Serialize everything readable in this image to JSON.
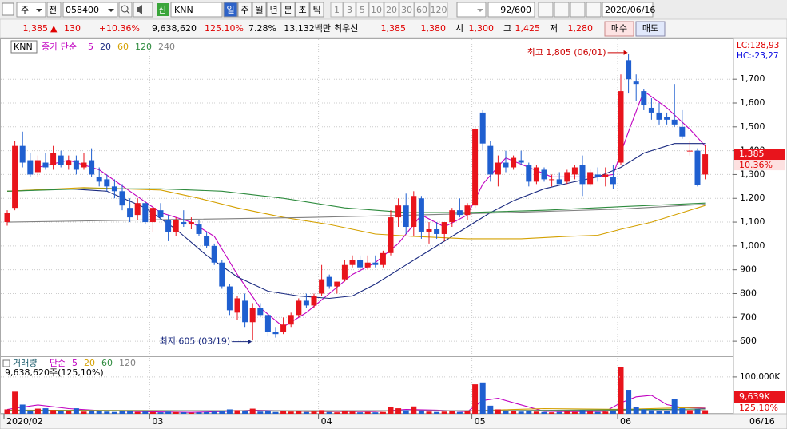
{
  "toolbar": {
    "market": "주",
    "prev": "전",
    "code": "058400",
    "badge": "신",
    "name": "KNN",
    "periods": [
      "일",
      "주",
      "월",
      "년",
      "분",
      "초",
      "틱"
    ],
    "intervals": [
      "1",
      "3",
      "5",
      "10",
      "20",
      "30",
      "60",
      "120"
    ],
    "count": "92/600",
    "date": "2020/06/16"
  },
  "quote": {
    "price": "1,385",
    "arrow": "▲",
    "change": "130",
    "change_pct": "+10.36%",
    "volume": "9,638,620",
    "volume_ratio": "125.10%",
    "turnover": "7.28%",
    "amount": "13,132백만",
    "best_label": "최우선",
    "ask": "1,385",
    "bid": "1,380",
    "open_label": "시",
    "open": "1,300",
    "high_label": "고",
    "high": "1,425",
    "low_label": "저",
    "low": "1,280",
    "buy": "매수",
    "sell": "매도"
  },
  "chart_data": {
    "type": "candlestick",
    "symbol": "KNN",
    "ma_label": "종가 단순",
    "up_color": "#e8141c",
    "down_color": "#1f5fd0",
    "grid": true,
    "candles": [
      [
        1100,
        1150,
        1085,
        1140
      ],
      [
        1160,
        1440,
        1150,
        1420
      ],
      [
        1420,
        1480,
        1330,
        1350
      ],
      [
        1360,
        1390,
        1290,
        1300
      ],
      [
        1310,
        1380,
        1290,
        1360
      ],
      [
        1350,
        1390,
        1320,
        1330
      ],
      [
        1340,
        1420,
        1320,
        1390
      ],
      [
        1380,
        1400,
        1330,
        1340
      ],
      [
        1340,
        1380,
        1320,
        1360
      ],
      [
        1360,
        1380,
        1300,
        1320
      ],
      [
        1330,
        1390,
        1320,
        1350
      ],
      [
        1360,
        1410,
        1290,
        1300
      ],
      [
        1290,
        1330,
        1250,
        1270
      ],
      [
        1280,
        1300,
        1230,
        1250
      ],
      [
        1250,
        1280,
        1200,
        1230
      ],
      [
        1230,
        1260,
        1150,
        1170
      ],
      [
        1160,
        1200,
        1100,
        1120
      ],
      [
        1130,
        1200,
        1110,
        1180
      ],
      [
        1180,
        1190,
        1090,
        1100
      ],
      [
        1100,
        1170,
        1060,
        1160
      ],
      [
        1150,
        1180,
        1110,
        1120
      ],
      [
        1110,
        1130,
        1020,
        1060
      ],
      [
        1060,
        1120,
        1040,
        1110
      ],
      [
        1100,
        1150,
        1080,
        1090
      ],
      [
        1090,
        1120,
        1070,
        1100
      ],
      [
        1090,
        1110,
        1040,
        1050
      ],
      [
        1040,
        1060,
        990,
        1000
      ],
      [
        1000,
        1010,
        920,
        930
      ],
      [
        930,
        940,
        820,
        830
      ],
      [
        830,
        840,
        710,
        730
      ],
      [
        720,
        790,
        690,
        780
      ],
      [
        770,
        800,
        660,
        680
      ],
      [
        680,
        760,
        605,
        740
      ],
      [
        740,
        760,
        700,
        710
      ],
      [
        710,
        720,
        620,
        640
      ],
      [
        640,
        660,
        615,
        630
      ],
      [
        640,
        700,
        630,
        670
      ],
      [
        670,
        720,
        660,
        710
      ],
      [
        710,
        780,
        700,
        770
      ],
      [
        770,
        800,
        740,
        750
      ],
      [
        750,
        800,
        740,
        790
      ],
      [
        800,
        920,
        790,
        860
      ],
      [
        870,
        880,
        820,
        830
      ],
      [
        830,
        850,
        800,
        850
      ],
      [
        860,
        940,
        850,
        920
      ],
      [
        920,
        960,
        910,
        940
      ],
      [
        940,
        960,
        890,
        910
      ],
      [
        910,
        960,
        900,
        930
      ],
      [
        930,
        960,
        910,
        920
      ],
      [
        920,
        980,
        910,
        970
      ],
      [
        970,
        1150,
        960,
        1120
      ],
      [
        1120,
        1200,
        1080,
        1170
      ],
      [
        1170,
        1220,
        1050,
        1080
      ],
      [
        1080,
        1230,
        1040,
        1210
      ],
      [
        1200,
        1210,
        1030,
        1060
      ],
      [
        1060,
        1100,
        1010,
        1070
      ],
      [
        1070,
        1100,
        1030,
        1050
      ],
      [
        1050,
        1100,
        1020,
        1100
      ],
      [
        1100,
        1160,
        1080,
        1150
      ],
      [
        1150,
        1200,
        1120,
        1130
      ],
      [
        1130,
        1180,
        1110,
        1170
      ],
      [
        1170,
        1500,
        1160,
        1490
      ],
      [
        1560,
        1570,
        1400,
        1430
      ],
      [
        1420,
        1440,
        1270,
        1300
      ],
      [
        1300,
        1380,
        1250,
        1350
      ],
      [
        1350,
        1400,
        1310,
        1330
      ],
      [
        1330,
        1380,
        1320,
        1370
      ],
      [
        1360,
        1400,
        1340,
        1350
      ],
      [
        1340,
        1350,
        1250,
        1270
      ],
      [
        1270,
        1340,
        1260,
        1330
      ],
      [
        1320,
        1330,
        1270,
        1280
      ],
      [
        1280,
        1300,
        1250,
        1280
      ],
      [
        1280,
        1310,
        1260,
        1260
      ],
      [
        1270,
        1320,
        1260,
        1310
      ],
      [
        1300,
        1340,
        1280,
        1330
      ],
      [
        1340,
        1380,
        1210,
        1260
      ],
      [
        1260,
        1320,
        1250,
        1310
      ],
      [
        1300,
        1330,
        1270,
        1290
      ],
      [
        1290,
        1330,
        1250,
        1300
      ],
      [
        1290,
        1340,
        1240,
        1260
      ],
      [
        1350,
        1720,
        1340,
        1650
      ],
      [
        1780,
        1805,
        1640,
        1700
      ],
      [
        1690,
        1720,
        1610,
        1680
      ],
      [
        1650,
        1660,
        1570,
        1590
      ],
      [
        1580,
        1620,
        1530,
        1560
      ],
      [
        1560,
        1600,
        1510,
        1530
      ],
      [
        1540,
        1560,
        1510,
        1530
      ],
      [
        1530,
        1680,
        1500,
        1510
      ],
      [
        1500,
        1570,
        1450,
        1460
      ],
      [
        1400,
        1440,
        1380,
        1400
      ],
      [
        1400,
        1410,
        1250,
        1255
      ],
      [
        1300,
        1425,
        1280,
        1385
      ]
    ],
    "series": [
      {
        "name": "5",
        "color": "#c000c0",
        "x": [
          4,
          8,
          12,
          16,
          20,
          24,
          27,
          30,
          33,
          36,
          39,
          42,
          45,
          48,
          51,
          54,
          57,
          60,
          62,
          65,
          68,
          71,
          74,
          77,
          79,
          81,
          83,
          86,
          89,
          91
        ],
        "values": [
          1330,
          1360,
          1320,
          1230,
          1140,
          1100,
          1040,
          880,
          740,
          660,
          720,
          800,
          880,
          930,
          1010,
          1130,
          1080,
          1130,
          1260,
          1370,
          1330,
          1290,
          1290,
          1290,
          1300,
          1480,
          1650,
          1580,
          1490,
          1420
        ]
      },
      {
        "name": "20",
        "color": "#1a2a80",
        "x": [
          0,
          8,
          13,
          18,
          22,
          26,
          30,
          34,
          38,
          42,
          45,
          48,
          52,
          56,
          60,
          63,
          66,
          70,
          74,
          77,
          80,
          83,
          87,
          91
        ],
        "values": [
          1230,
          1240,
          1230,
          1160,
          1070,
          960,
          870,
          810,
          790,
          780,
          790,
          840,
          920,
          1000,
          1080,
          1140,
          1190,
          1240,
          1270,
          1290,
          1330,
          1390,
          1430,
          1430
        ]
      },
      {
        "name": "60",
        "color": "#d4a000",
        "x": [
          0,
          10,
          20,
          25,
          30,
          36,
          42,
          48,
          53,
          60,
          67,
          73,
          77,
          80,
          84,
          88,
          91
        ],
        "values": [
          1230,
          1245,
          1235,
          1200,
          1160,
          1120,
          1090,
          1050,
          1040,
          1030,
          1030,
          1040,
          1045,
          1070,
          1100,
          1140,
          1170
        ]
      },
      {
        "name": "120",
        "color": "#2e8b3e",
        "x": [
          0,
          10,
          20,
          28,
          36,
          44,
          52,
          60,
          70,
          80,
          91
        ],
        "values": [
          1230,
          1240,
          1240,
          1230,
          1200,
          1160,
          1140,
          1140,
          1150,
          1165,
          1180
        ]
      },
      {
        "name": "240",
        "color": "#808080",
        "x": [
          0,
          20,
          40,
          60,
          80,
          91
        ],
        "values": [
          1100,
          1110,
          1120,
          1135,
          1155,
          1175
        ]
      }
    ],
    "ylim": [
      540,
      1865
    ],
    "yticks": [
      600,
      700,
      800,
      900,
      {
        "value": 1000,
        "label": "1,000"
      },
      {
        "value": 1100,
        "label": "1,100"
      },
      {
        "value": 1200,
        "label": "1,200"
      },
      {
        "value": 1300,
        "label": "1,300"
      },
      {
        "value": 1400,
        "label": "1,400"
      },
      {
        "value": 1500,
        "label": "1,500"
      },
      {
        "value": 1600,
        "label": "1,600"
      },
      {
        "value": 1700,
        "label": "1,700"
      }
    ],
    "month_starts": [
      {
        "value": 0,
        "label": "2020/02"
      },
      {
        "value": 19,
        "label": "03"
      },
      {
        "value": 41,
        "label": "04"
      },
      {
        "value": 61,
        "label": "05"
      },
      {
        "value": 80,
        "label": "06"
      }
    ],
    "last_date": "06/16",
    "annotations": [
      {
        "text": "최고 1,805 (06/01)",
        "index": 81,
        "value": 1805
      },
      {
        "text": "최저 605 (03/19)",
        "index": 32,
        "value": 605
      }
    ],
    "lc": "LC:128,93",
    "hc": "HC:-23,27",
    "current": {
      "value": 1385,
      "label": "1,385"
    },
    "current_pct": "10.36%",
    "volume": {
      "title": "거래량",
      "ma_label": "단순",
      "summary": "9,638,620주(125,10%)",
      "values": [
        12000,
        60000,
        25000,
        9000,
        14000,
        15000,
        10000,
        7000,
        8000,
        15000,
        6000,
        9000,
        7000,
        6000,
        5000,
        8000,
        7000,
        5000,
        6000,
        5000,
        4000,
        6000,
        5000,
        4000,
        3000,
        4000,
        5000,
        6000,
        8000,
        12000,
        10000,
        8000,
        14000,
        6000,
        9000,
        5000,
        7000,
        6000,
        8000,
        5000,
        6000,
        10000,
        5000,
        4000,
        7000,
        6000,
        4000,
        5000,
        4000,
        5000,
        18000,
        15000,
        10000,
        20000,
        9000,
        6000,
        5000,
        6000,
        7000,
        5000,
        8000,
        80000,
        85000,
        22000,
        12000,
        8000,
        7000,
        6000,
        8000,
        6000,
        5000,
        4000,
        5000,
        6000,
        5000,
        10000,
        6000,
        5000,
        6000,
        7000,
        126000,
        65000,
        18000,
        12000,
        10000,
        9000,
        7000,
        40000,
        15000,
        10000,
        12000,
        9639
      ],
      "series": [
        {
          "name": "5",
          "color": "#c000c0",
          "x": [
            0,
            4,
            8,
            12,
            16,
            20,
            24,
            28,
            32,
            36,
            40,
            44,
            48,
            52,
            56,
            60,
            62,
            64,
            66,
            70,
            74,
            78,
            80,
            82,
            84,
            86,
            88,
            91
          ],
          "values": [
            12000,
            24000,
            14000,
            9000,
            7000,
            5000,
            4000,
            6000,
            10000,
            8000,
            6000,
            6000,
            6000,
            12000,
            10000,
            6000,
            36000,
            42000,
            30000,
            7000,
            6000,
            7000,
            30000,
            46000,
            50000,
            25000,
            17000,
            15000
          ]
        },
        {
          "name": "20",
          "color": "#d4a000",
          "x": [
            0,
            20,
            40,
            60,
            70,
            80,
            91
          ],
          "values": [
            10000,
            9000,
            7000,
            8000,
            14000,
            12000,
            18000
          ]
        },
        {
          "name": "60",
          "color": "#2e8b3e",
          "x": [
            0,
            40,
            60,
            80,
            91
          ],
          "values": [
            9000,
            8000,
            8000,
            11000,
            13000
          ]
        },
        {
          "name": "120",
          "color": "#808080",
          "x": [
            0,
            91
          ],
          "values": [
            8000,
            9000
          ]
        }
      ],
      "ylim": [
        0,
        154000
      ],
      "yticks": [
        {
          "value": 100000,
          "label": "100,000K"
        }
      ],
      "current": {
        "value": 9639,
        "label": "9,639K"
      },
      "current_pct": "125.10%"
    }
  }
}
